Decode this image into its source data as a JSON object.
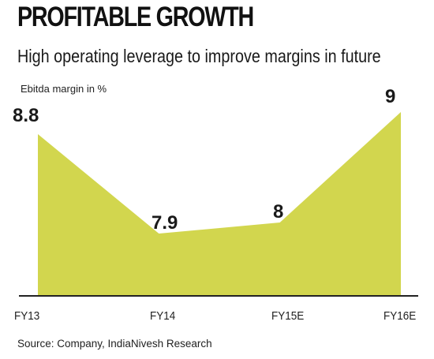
{
  "header": {
    "title": "PROFITABLE GROWTH",
    "subtitle": "High operating leverage to improve margins in future"
  },
  "footer": {
    "source": "Source: Company, IndiaNivesh Research"
  },
  "chart_data": {
    "type": "area",
    "title": "PROFITABLE GROWTH",
    "subtitle": "High operating leverage to improve margins in future",
    "ylabel": "Ebitda margin in %",
    "xlabel": "",
    "categories": [
      "FY13",
      "FY14",
      "FY15E",
      "FY16E"
    ],
    "values": [
      8.8,
      7.9,
      8,
      9
    ],
    "labels": [
      "8.8",
      "7.9",
      "8",
      "9"
    ],
    "ylim": [
      7.0,
      9.0
    ],
    "grid": false,
    "legend": "none",
    "fill_color": "#d2d64e"
  }
}
